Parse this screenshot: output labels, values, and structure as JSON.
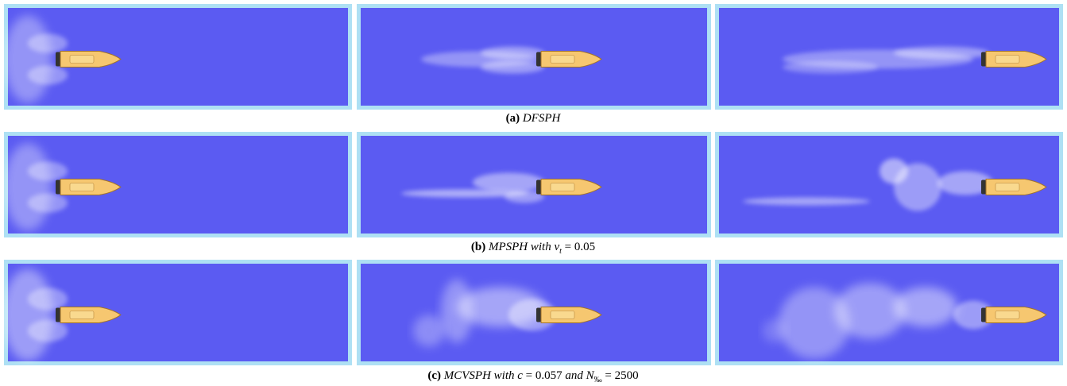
{
  "captions": [
    {
      "label": "(a)",
      "segments": [
        "DFSPH"
      ]
    },
    {
      "label": "(b)",
      "segments": [
        "MPSPH with ν",
        "t",
        " = 0.05"
      ]
    },
    {
      "label": "(c)",
      "segments": [
        "MCVSPH with c",
        " = 0.057 ",
        "and N",
        "‰",
        " = 2500"
      ]
    }
  ]
}
